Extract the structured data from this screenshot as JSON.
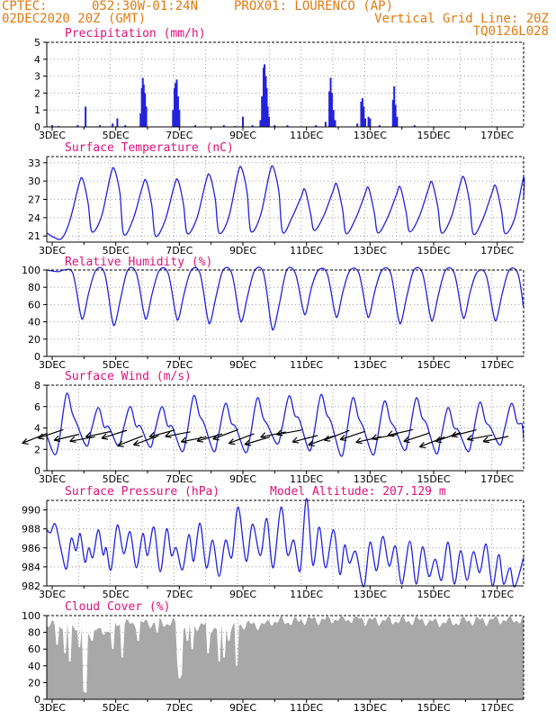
{
  "header": {
    "source": "CPTEC:",
    "location": "052:30W-01:24N",
    "station": "PROX01: LOURENCO (AP)",
    "date": "02DEC2020 20Z (GMT)",
    "grid_note": "Vertical Grid Line: 20Z",
    "code": "TQ0126L028"
  },
  "colors": {
    "header": "#e07a10",
    "title": "#e0107a",
    "series": "#2222dd",
    "cloud": "#a8a8a8",
    "grid": "#9a9a9a"
  },
  "x_days": [
    "3DEC",
    "5DEC",
    "7DEC",
    "9DEC",
    "11DEC",
    "13DEC",
    "15DEC",
    "17DEC"
  ],
  "chart_data": [
    {
      "type": "bar",
      "title": "Precipitation (mm/h)",
      "ylim": [
        0,
        5
      ],
      "yticks": [
        0,
        1,
        2,
        3,
        4,
        5
      ],
      "x_range_days": [
        2.83,
        17.83
      ],
      "events": [
        [
          3.0,
          0.1
        ],
        [
          3.2,
          0.05
        ],
        [
          3.8,
          0.1
        ],
        [
          4.05,
          1.2
        ],
        [
          4.5,
          0.1
        ],
        [
          4.9,
          0.2
        ],
        [
          5.05,
          0.5
        ],
        [
          5.3,
          0.1
        ],
        [
          5.78,
          0.8
        ],
        [
          5.82,
          2.3
        ],
        [
          5.85,
          2.9
        ],
        [
          5.88,
          2.5
        ],
        [
          5.92,
          2.0
        ],
        [
          5.96,
          1.2
        ],
        [
          6.8,
          1.0
        ],
        [
          6.85,
          2.3
        ],
        [
          6.88,
          2.6
        ],
        [
          6.92,
          2.8
        ],
        [
          6.96,
          1.8
        ],
        [
          7.0,
          1.0
        ],
        [
          7.5,
          0.1
        ],
        [
          8.4,
          0.1
        ],
        [
          8.75,
          0.05
        ],
        [
          9.0,
          0.6
        ],
        [
          9.3,
          0.1
        ],
        [
          9.55,
          0.4
        ],
        [
          9.6,
          1.8
        ],
        [
          9.65,
          3.5
        ],
        [
          9.68,
          3.7
        ],
        [
          9.72,
          3.0
        ],
        [
          9.75,
          2.3
        ],
        [
          9.78,
          1.2
        ],
        [
          9.82,
          0.6
        ],
        [
          10.0,
          0.1
        ],
        [
          10.4,
          0.1
        ],
        [
          11.3,
          0.1
        ],
        [
          11.6,
          0.3
        ],
        [
          11.72,
          2.1
        ],
        [
          11.76,
          2.9
        ],
        [
          11.8,
          2.0
        ],
        [
          11.85,
          1.0
        ],
        [
          11.9,
          0.4
        ],
        [
          12.6,
          0.2
        ],
        [
          12.72,
          1.5
        ],
        [
          12.76,
          1.7
        ],
        [
          12.8,
          1.2
        ],
        [
          12.85,
          0.5
        ],
        [
          12.95,
          0.6
        ],
        [
          13.0,
          0.5
        ],
        [
          13.3,
          0.1
        ],
        [
          13.72,
          1.6
        ],
        [
          13.76,
          2.4
        ],
        [
          13.8,
          1.3
        ],
        [
          13.85,
          0.6
        ],
        [
          14.4,
          0.1
        ]
      ]
    },
    {
      "type": "line",
      "title": "Surface Temperature (nC)",
      "ylim": [
        20,
        34
      ],
      "yticks": [
        21,
        24,
        27,
        30,
        33
      ],
      "x_range_days": [
        2.83,
        17.83
      ],
      "start": {
        "day": 2.83,
        "value": 21.5
      },
      "early_dip": [
        {
          "day": 3.05,
          "value": 20.8
        },
        {
          "day": 3.3,
          "value": 20.6
        }
      ],
      "daily_min": [
        20.9,
        21.7,
        21.3,
        21.0,
        21.4,
        21.5,
        21.8,
        21.6,
        21.9,
        21.4,
        21.5,
        21.7,
        21.5,
        21.3,
        21.4
      ],
      "daily_max": [
        30.4,
        32.0,
        30.1,
        30.2,
        31.0,
        32.2,
        32.3,
        28.6,
        29.5,
        28.9,
        29.0,
        29.8,
        30.6,
        29.2,
        31.8
      ],
      "last_value": 27.0
    },
    {
      "type": "line",
      "title": "Relative Humidity (%)",
      "ylim": [
        0,
        100
      ],
      "yticks": [
        0,
        20,
        40,
        60,
        80,
        100
      ],
      "x_range_days": [
        2.83,
        17.83
      ],
      "start": {
        "day": 2.83,
        "value": 100
      },
      "daily_min": [
        45,
        38,
        45,
        44,
        40,
        42,
        33,
        50,
        47,
        47,
        40,
        43,
        46,
        43,
        37
      ],
      "daily_max": [
        100,
        100,
        100,
        100,
        100,
        100,
        100,
        100,
        100,
        100,
        100,
        100,
        100,
        98,
        100
      ],
      "last_value": 57
    },
    {
      "type": "line",
      "title": "Surface Wind (m/s)",
      "ylim": [
        0,
        8
      ],
      "yticks": [
        0,
        2,
        4,
        6,
        8
      ],
      "x_range_days": [
        2.83,
        17.83
      ],
      "start": {
        "day": 2.83,
        "value": 3.3
      },
      "daily_min": [
        1.5,
        2.3,
        2.3,
        2.2,
        1.8,
        1.8,
        1.7,
        2.5,
        1.9,
        1.4,
        1.5,
        1.9,
        1.6,
        1.8,
        2.4
      ],
      "daily_max": [
        7.2,
        5.9,
        6.0,
        6.0,
        7.0,
        6.3,
        6.8,
        7.0,
        7.1,
        6.8,
        6.5,
        6.8,
        5.9,
        6.4,
        6.3
      ],
      "last_value": 3.0,
      "vector_days": [
        2.85,
        3.35,
        3.85,
        4.35,
        4.85,
        5.35,
        5.85,
        6.35,
        6.85,
        7.35,
        7.85,
        8.35,
        8.85,
        9.35,
        9.85,
        10.35,
        10.85,
        11.35,
        11.85,
        12.35,
        12.85,
        13.35,
        13.85,
        14.35,
        14.85,
        15.35,
        15.85,
        16.35,
        16.85,
        17.35
      ]
    },
    {
      "type": "line",
      "title": "Surface Pressure (hPa)",
      "annotation": "Model Altitude: 207.129  m",
      "ylim": [
        982,
        991
      ],
      "yticks": [
        982,
        984,
        986,
        988,
        990
      ],
      "x_range_days": [
        2.83,
        17.83
      ],
      "points": [
        [
          2.83,
          987.9
        ],
        [
          2.95,
          987.6
        ],
        [
          3.1,
          988.5
        ],
        [
          3.3,
          985.5
        ],
        [
          3.45,
          983.8
        ],
        [
          3.6,
          987.0
        ],
        [
          3.75,
          985.7
        ],
        [
          3.88,
          987.5
        ],
        [
          4.03,
          984.5
        ],
        [
          4.15,
          986.0
        ],
        [
          4.28,
          985.0
        ],
        [
          4.45,
          987.9
        ],
        [
          4.6,
          985.3
        ],
        [
          4.7,
          986.0
        ],
        [
          4.85,
          983.7
        ],
        [
          5.05,
          988.4
        ],
        [
          5.25,
          985.4
        ],
        [
          5.45,
          987.7
        ],
        [
          5.65,
          983.9
        ],
        [
          5.85,
          987.5
        ],
        [
          6.0,
          985.2
        ],
        [
          6.2,
          988.2
        ],
        [
          6.4,
          983.5
        ],
        [
          6.6,
          988.0
        ],
        [
          6.75,
          985.2
        ],
        [
          6.9,
          986.0
        ],
        [
          7.1,
          983.7
        ],
        [
          7.3,
          987.4
        ],
        [
          7.45,
          984.6
        ],
        [
          7.65,
          988.6
        ],
        [
          7.85,
          983.9
        ],
        [
          8.05,
          986.8
        ],
        [
          8.25,
          983.0
        ],
        [
          8.45,
          986.8
        ],
        [
          8.65,
          985.0
        ],
        [
          8.85,
          990.3
        ],
        [
          9.1,
          984.6
        ],
        [
          9.3,
          988.5
        ],
        [
          9.55,
          985.2
        ],
        [
          9.75,
          989.1
        ],
        [
          9.95,
          983.9
        ],
        [
          10.2,
          990.3
        ],
        [
          10.4,
          985.3
        ],
        [
          10.6,
          986.8
        ],
        [
          10.8,
          983.6
        ],
        [
          11.0,
          991.2
        ],
        [
          11.2,
          984.2
        ],
        [
          11.4,
          988.2
        ],
        [
          11.6,
          983.9
        ],
        [
          11.85,
          987.9
        ],
        [
          12.05,
          983.2
        ],
        [
          12.2,
          986.3
        ],
        [
          12.35,
          984.4
        ],
        [
          12.55,
          985.6
        ],
        [
          12.8,
          981.8
        ],
        [
          13.0,
          986.6
        ],
        [
          13.2,
          983.6
        ],
        [
          13.4,
          987.2
        ],
        [
          13.6,
          984.1
        ],
        [
          13.8,
          986.2
        ],
        [
          14.0,
          982.2
        ],
        [
          14.25,
          986.7
        ],
        [
          14.45,
          982.2
        ],
        [
          14.65,
          986.1
        ],
        [
          14.85,
          983.0
        ],
        [
          15.05,
          984.8
        ],
        [
          15.25,
          982.6
        ],
        [
          15.45,
          986.6
        ],
        [
          15.65,
          982.2
        ],
        [
          15.85,
          985.7
        ],
        [
          16.05,
          982.6
        ],
        [
          16.25,
          985.6
        ],
        [
          16.45,
          983.4
        ],
        [
          16.65,
          986.4
        ],
        [
          16.85,
          982.0
        ],
        [
          17.05,
          985.3
        ],
        [
          17.2,
          982.2
        ],
        [
          17.4,
          983.9
        ],
        [
          17.55,
          981.8
        ],
        [
          17.83,
          985.0
        ]
      ]
    },
    {
      "type": "area",
      "title": "Cloud Cover (%)",
      "ylim": [
        0,
        100
      ],
      "yticks": [
        0,
        20,
        40,
        60,
        80,
        100
      ],
      "x_range_days": [
        2.83,
        17.83
      ],
      "base_by_day": [
        88,
        82,
        90,
        91,
        88,
        85,
        89,
        93,
        95,
        96,
        94,
        94,
        92,
        94,
        95
      ],
      "dips": [
        [
          3.15,
          65
        ],
        [
          3.4,
          55
        ],
        [
          3.55,
          45
        ],
        [
          3.85,
          62
        ],
        [
          4.0,
          10
        ],
        [
          4.05,
          8
        ],
        [
          4.25,
          70
        ],
        [
          4.45,
          85
        ],
        [
          4.9,
          60
        ],
        [
          5.2,
          50
        ],
        [
          5.7,
          70
        ],
        [
          6.3,
          80
        ],
        [
          6.95,
          45
        ],
        [
          7.0,
          25
        ],
        [
          7.05,
          30
        ],
        [
          7.25,
          70
        ],
        [
          7.4,
          60
        ],
        [
          7.9,
          55
        ],
        [
          8.25,
          45
        ],
        [
          8.4,
          50
        ],
        [
          8.55,
          70
        ],
        [
          8.8,
          40
        ]
      ]
    }
  ]
}
